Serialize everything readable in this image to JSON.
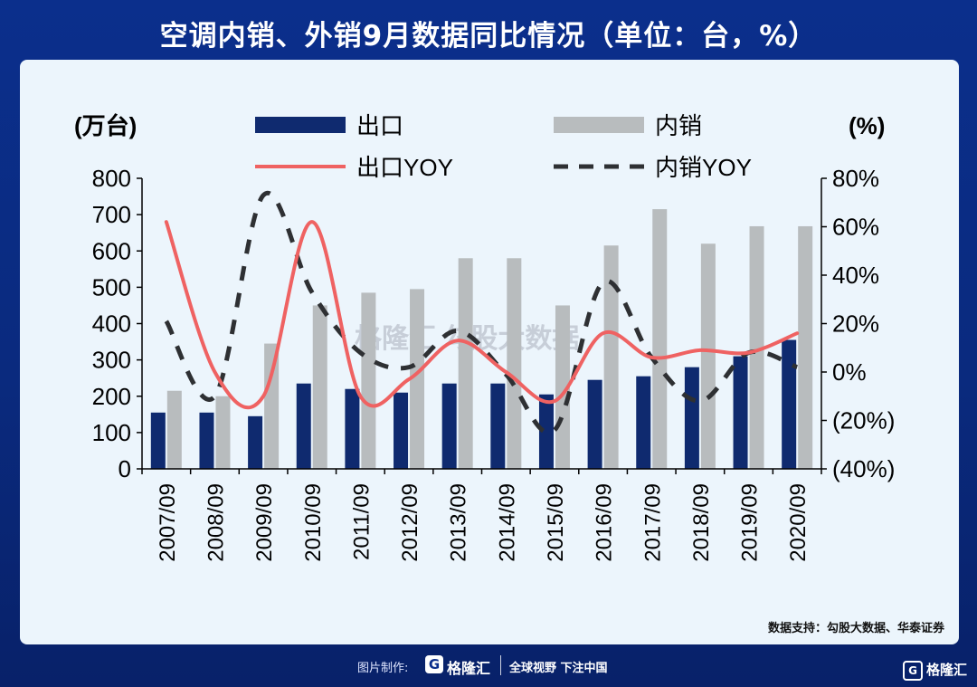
{
  "title": "空调内销、外销9月数据同比情况（单位：台，%）",
  "source": "数据支持：勾股大数据、华泰证券",
  "watermark": "格隆汇 勾股大数据",
  "footer": {
    "credit": "图片制作:",
    "logo_glyph": "G",
    "logo_text": "格隆汇",
    "slogan": "全球视野 下注中国",
    "corner_logo": "格隆汇"
  },
  "chart_data": {
    "type": "bar",
    "categories": [
      "2007/09",
      "2008/09",
      "2009/09",
      "2010/09",
      "2011/09",
      "2012/09",
      "2013/09",
      "2014/09",
      "2015/09",
      "2016/09",
      "2017/09",
      "2018/09",
      "2019/09",
      "2020/09"
    ],
    "left_axis": {
      "unit_label": "(万台)",
      "ylim": [
        0,
        800
      ],
      "ticks": [
        "0",
        "100",
        "200",
        "300",
        "400",
        "500",
        "600",
        "700",
        "800"
      ]
    },
    "right_axis": {
      "unit_label": "(%)",
      "ylim": [
        -40,
        80
      ],
      "ticks": [
        "(40%)",
        "(20%)",
        "0%",
        "20%",
        "40%",
        "60%",
        "80%"
      ]
    },
    "series": [
      {
        "name": "出口",
        "kind": "bar",
        "axis": "left",
        "color": "#0f2a6f",
        "values": [
          155,
          155,
          145,
          235,
          220,
          210,
          235,
          235,
          205,
          245,
          255,
          280,
          310,
          355
        ]
      },
      {
        "name": "内销",
        "kind": "bar",
        "axis": "left",
        "color": "#b8bcbe",
        "values": [
          215,
          200,
          345,
          450,
          485,
          495,
          580,
          580,
          450,
          615,
          715,
          620,
          668,
          668
        ]
      },
      {
        "name": "出口YOY",
        "kind": "line",
        "axis": "right",
        "color": "#ef6262",
        "dash": "solid",
        "values": [
          62,
          0,
          -10,
          62,
          -10,
          -3,
          13,
          0,
          -12,
          16,
          6,
          9,
          8,
          16
        ]
      },
      {
        "name": "内销YOY",
        "kind": "line",
        "axis": "right",
        "color": "#2e3033",
        "dash": "dashed",
        "values": [
          21,
          -10,
          73,
          33,
          8,
          2,
          17,
          -1,
          -24,
          37,
          6,
          -12,
          8,
          2
        ]
      }
    ],
    "legend_position": "top",
    "grid": false
  }
}
